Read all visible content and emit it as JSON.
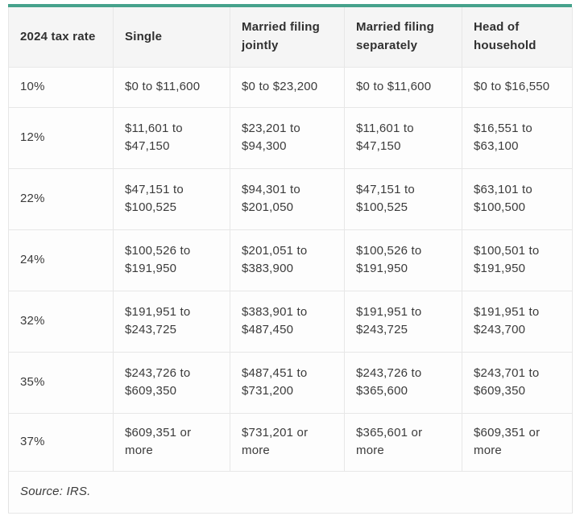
{
  "chart_data": {
    "type": "table",
    "columns": [
      "2024 tax rate",
      "Single",
      "Married filing jointly",
      "Married filing separately",
      "Head of household"
    ],
    "rows": [
      [
        "10%",
        "$0 to $11,600",
        "$0 to $23,200",
        "$0 to $11,600",
        "$0 to $16,550"
      ],
      [
        "12%",
        "$11,601 to $47,150",
        "$23,201 to $94,300",
        "$11,601 to $47,150",
        "$16,551 to $63,100"
      ],
      [
        "22%",
        "$47,151 to $100,525",
        "$94,301 to $201,050",
        "$47,151 to $100,525",
        "$63,101 to $100,500"
      ],
      [
        "24%",
        "$100,526 to $191,950",
        "$201,051 to $383,900",
        "$100,526 to $191,950",
        "$100,501 to $191,950"
      ],
      [
        "32%",
        "$191,951 to $243,725",
        "$383,901 to $487,450",
        "$191,951 to $243,725",
        "$191,951 to $243,700"
      ],
      [
        "35%",
        "$243,726 to $609,350",
        "$487,451 to $731,200",
        "$243,726 to $365,600",
        "$243,701 to $609,350"
      ],
      [
        "37%",
        "$609,351 or more",
        "$731,201 or more",
        "$365,601 or more",
        "$609,351 or more"
      ]
    ],
    "source_note": "Source: IRS.",
    "layout": {
      "accent_color": "#46a28c",
      "header_bg": "#f5f5f5",
      "border_color": "#e7e7e7",
      "text_color": "#3b3b3b"
    }
  }
}
